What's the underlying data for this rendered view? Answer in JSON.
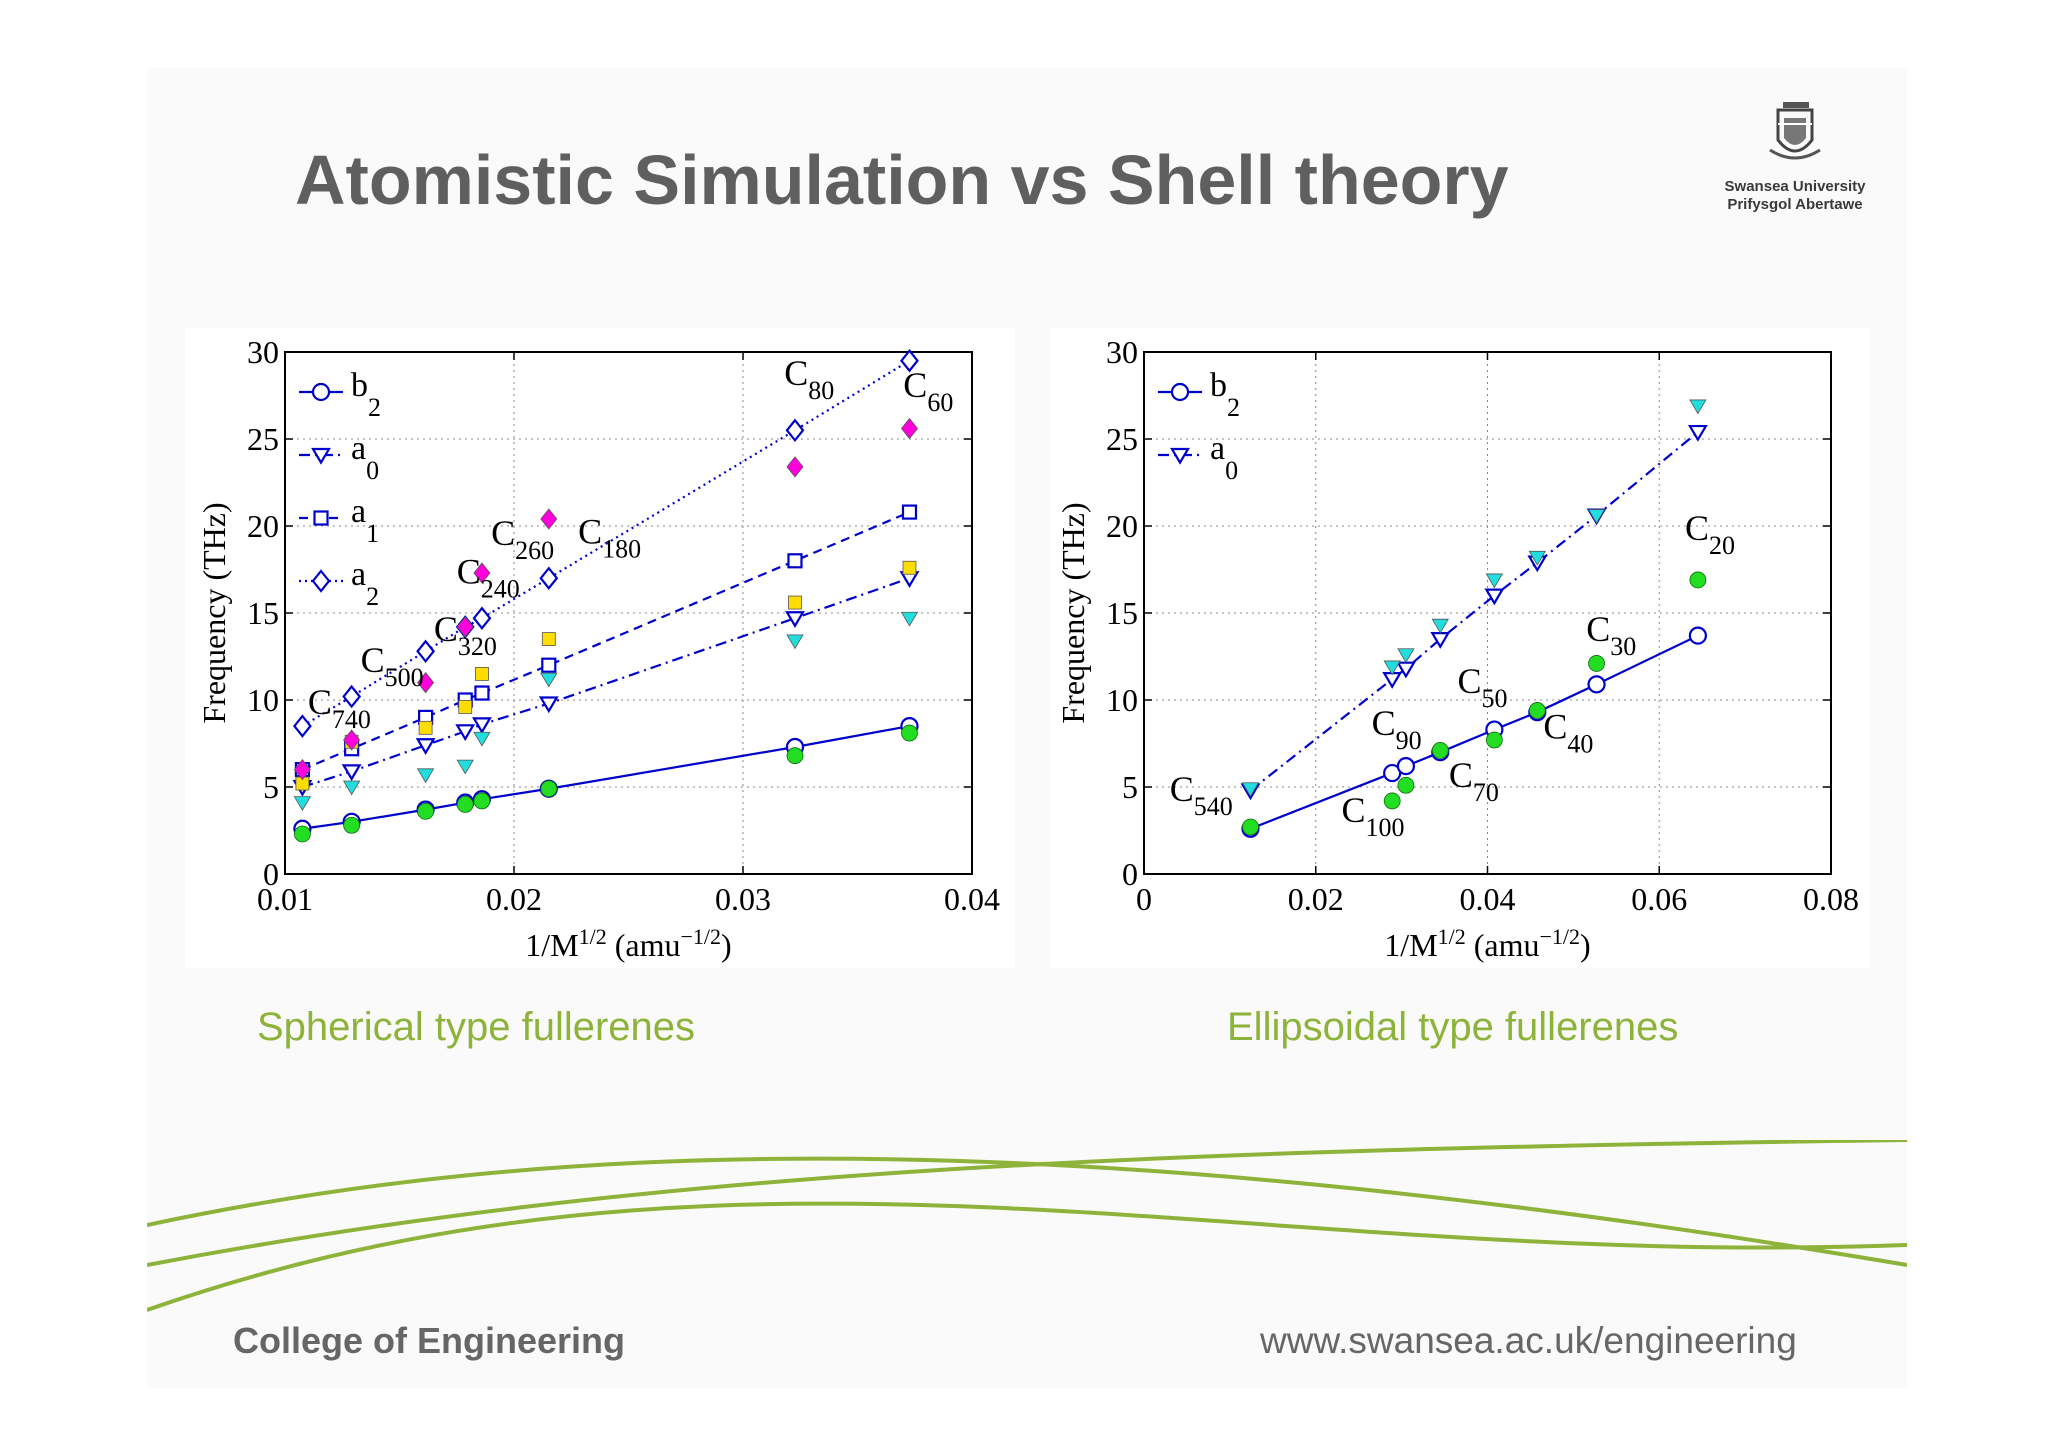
{
  "slide": {
    "title": "Atomistic Simulation vs Shell theory",
    "logo": {
      "line1": "Swansea University",
      "line2": "Prifysgol Abertawe"
    },
    "footer_left": "College of Engineering",
    "footer_right": "www.swansea.ac.uk/engineering",
    "accent_color": "#8db33a"
  },
  "chart_data": [
    {
      "type": "scatter",
      "caption": "Spherical type fullerenes",
      "xlabel": "1/M^{1/2} (amu^{−1/2})",
      "ylabel": "Frequency (THz)",
      "xlim": [
        0.01,
        0.04
      ],
      "ylim": [
        0,
        30
      ],
      "xticks": [
        0.01,
        0.02,
        0.03,
        0.04
      ],
      "xtick_labels": [
        "0.01",
        "0.02",
        "0.03",
        "0.04"
      ],
      "yticks": [
        0,
        5,
        10,
        15,
        20,
        25,
        30
      ],
      "ytick_labels": [
        "0",
        "5",
        "10",
        "15",
        "20",
        "25",
        "30"
      ],
      "grid": true,
      "legend_position": "top-left",
      "legend": [
        {
          "base": "b",
          "sub": "2",
          "marker": "circle",
          "dash": "solid"
        },
        {
          "base": "a",
          "sub": "0",
          "marker": "triangle-down",
          "dash": "dashdot"
        },
        {
          "base": "a",
          "sub": "1",
          "marker": "square",
          "dash": "dashed"
        },
        {
          "base": "a",
          "sub": "2",
          "marker": "diamond",
          "dash": "dotted"
        }
      ],
      "x": [
        0.01076,
        0.01291,
        0.01614,
        0.01787,
        0.0186,
        0.02152,
        0.03227,
        0.03727
      ],
      "series": [
        {
          "type": "line",
          "marker": "circle",
          "dash": "solid",
          "color": "#0000cc",
          "values": [
            2.6,
            3.0,
            3.7,
            4.1,
            4.3,
            4.9,
            7.3,
            8.5
          ]
        },
        {
          "type": "line",
          "marker": "triangle-down",
          "dash": "dashdot",
          "color": "#0000cc",
          "values": [
            5.0,
            5.9,
            7.4,
            8.2,
            8.6,
            9.8,
            14.7,
            17.0
          ]
        },
        {
          "type": "line",
          "marker": "square",
          "dash": "dashed",
          "color": "#0000cc",
          "values": [
            6.0,
            7.2,
            9.0,
            10.0,
            10.4,
            12.0,
            18.0,
            20.8
          ]
        },
        {
          "type": "line",
          "marker": "diamond",
          "dash": "dotted",
          "color": "#0000cc",
          "values": [
            8.5,
            10.2,
            12.8,
            14.2,
            14.7,
            17.0,
            25.5,
            29.5
          ]
        },
        {
          "type": "points",
          "marker": "filled-circle",
          "color": "#22dd22",
          "values": [
            2.3,
            2.8,
            3.6,
            4.0,
            4.2,
            4.9,
            6.8,
            8.1
          ]
        },
        {
          "type": "points",
          "marker": "filled-triangle-down",
          "color": "#22dddd",
          "values": [
            4.1,
            5.0,
            5.7,
            6.2,
            7.8,
            11.2,
            13.4,
            14.7
          ]
        },
        {
          "type": "points",
          "marker": "filled-square",
          "color": "#ffdd00",
          "values": [
            5.2,
            7.6,
            8.4,
            9.6,
            11.5,
            13.5,
            15.6,
            17.6
          ]
        },
        {
          "type": "points",
          "marker": "filled-diamond",
          "color": "#ff00dd",
          "values": [
            6.0,
            7.7,
            11.0,
            14.2,
            17.3,
            20.4,
            23.4,
            25.6
          ]
        }
      ],
      "annotations": [
        {
          "base": "C",
          "sub": "740",
          "x": 0.011,
          "y": 9.2
        },
        {
          "base": "C",
          "sub": "500",
          "x": 0.0133,
          "y": 11.6
        },
        {
          "base": "C",
          "sub": "320",
          "x": 0.0165,
          "y": 13.4
        },
        {
          "base": "C",
          "sub": "240",
          "x": 0.0175,
          "y": 16.7
        },
        {
          "base": "C",
          "sub": "260",
          "x": 0.019,
          "y": 18.9
        },
        {
          "base": "C",
          "sub": "180",
          "x": 0.0228,
          "y": 19.0
        },
        {
          "base": "C",
          "sub": "80",
          "x": 0.0318,
          "y": 28.1
        },
        {
          "base": "C",
          "sub": "60",
          "x": 0.037,
          "y": 27.4
        }
      ]
    },
    {
      "type": "scatter",
      "caption": "Ellipsoidal type fullerenes",
      "xlabel": "1/M^{1/2} (amu^{−1/2})",
      "ylabel": "Frequency (THz)",
      "xlim": [
        0,
        0.08
      ],
      "ylim": [
        0,
        30
      ],
      "xticks": [
        0,
        0.02,
        0.04,
        0.06,
        0.08
      ],
      "xtick_labels": [
        "0",
        "0.02",
        "0.04",
        "0.06",
        "0.08"
      ],
      "yticks": [
        0,
        5,
        10,
        15,
        20,
        25,
        30
      ],
      "ytick_labels": [
        "0",
        "5",
        "10",
        "15",
        "20",
        "25",
        "30"
      ],
      "grid": true,
      "legend_position": "top-left",
      "legend": [
        {
          "base": "b",
          "sub": "2",
          "marker": "circle",
          "dash": "solid"
        },
        {
          "base": "a",
          "sub": "0",
          "marker": "triangle-down",
          "dash": "dashdot"
        }
      ],
      "x": [
        0.0124,
        0.0289,
        0.0305,
        0.0345,
        0.0408,
        0.0458,
        0.0527,
        0.0645
      ],
      "series": [
        {
          "type": "line",
          "marker": "circle",
          "dash": "solid",
          "color": "#0000cc",
          "values": [
            2.6,
            5.8,
            6.2,
            7.0,
            8.3,
            9.3,
            10.9,
            13.7
          ]
        },
        {
          "type": "line",
          "marker": "triangle-down",
          "dash": "dashdot",
          "color": "#0000cc",
          "values": [
            4.8,
            11.2,
            11.8,
            13.5,
            16.0,
            17.9,
            20.6,
            25.4
          ]
        },
        {
          "type": "points",
          "marker": "filled-circle",
          "color": "#22dd22",
          "values": [
            2.7,
            4.2,
            5.1,
            7.1,
            7.7,
            9.4,
            12.1,
            16.9
          ]
        },
        {
          "type": "points",
          "marker": "filled-triangle-down",
          "color": "#22dddd",
          "values": [
            4.9,
            11.9,
            12.6,
            14.3,
            16.9,
            18.2,
            20.6,
            26.9
          ]
        }
      ],
      "annotations": [
        {
          "base": "C",
          "sub": "540",
          "x": 0.003,
          "y": 4.2
        },
        {
          "base": "C",
          "sub": "100",
          "x": 0.023,
          "y": 3.0
        },
        {
          "base": "C",
          "sub": "90",
          "x": 0.0265,
          "y": 8.0
        },
        {
          "base": "C",
          "sub": "70",
          "x": 0.0355,
          "y": 5.0
        },
        {
          "base": "C",
          "sub": "50",
          "x": 0.0365,
          "y": 10.4
        },
        {
          "base": "C",
          "sub": "40",
          "x": 0.0465,
          "y": 7.8
        },
        {
          "base": "C",
          "sub": "30",
          "x": 0.0515,
          "y": 13.4
        },
        {
          "base": "C",
          "sub": "20",
          "x": 0.063,
          "y": 19.2
        }
      ]
    }
  ]
}
